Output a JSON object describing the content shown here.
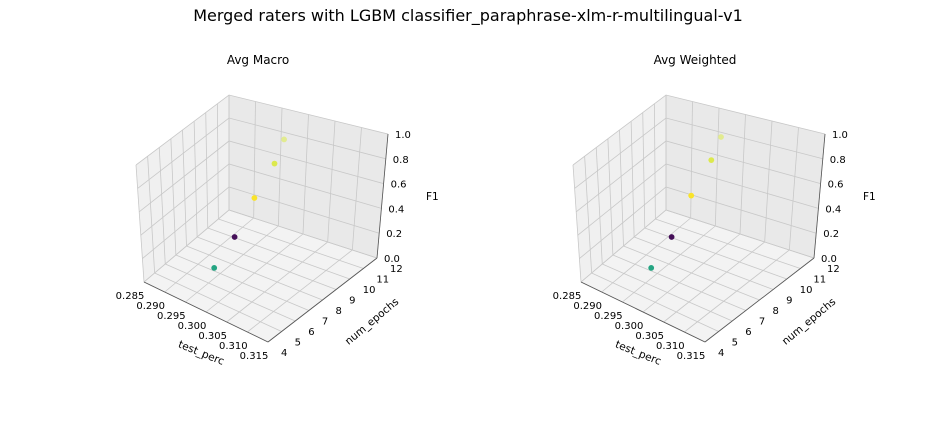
{
  "figure": {
    "title": "Merged raters with LGBM classifier_paraphrase-xlm-r-multilingual-v1"
  },
  "chart_data": [
    {
      "type": "scatter",
      "title": "Avg Macro",
      "xlabel": "test_perc",
      "ylabel": "num_epochs",
      "zlabel": "F1",
      "xlim": [
        0.285,
        0.315
      ],
      "ylim": [
        4,
        12
      ],
      "zlim": [
        0,
        1
      ],
      "xticks": [
        "0.285",
        "0.290",
        "0.295",
        "0.300",
        "0.305",
        "0.310",
        "0.315"
      ],
      "yticks": [
        "4",
        "5",
        "6",
        "7",
        "8",
        "9",
        "10",
        "11",
        "12"
      ],
      "zticks": [
        "0.0",
        "0.2",
        "0.4",
        "0.6",
        "0.8",
        "1.0"
      ],
      "points": [
        {
          "x": 0.3,
          "y": 5,
          "z": 0.3,
          "color": "#25a583"
        },
        {
          "x": 0.3,
          "y": 7,
          "z": 0.41,
          "color": "#450f58"
        },
        {
          "x": 0.3,
          "y": 9,
          "z": 0.59,
          "color": "#f9e32a"
        },
        {
          "x": 0.3,
          "y": 11,
          "z": 0.73,
          "color": "#dce94d"
        },
        {
          "x": 0.3,
          "y": 12,
          "z": 0.86,
          "color": "#e2eb90"
        }
      ]
    },
    {
      "type": "scatter",
      "title": "Avg Weighted",
      "xlabel": "test_perc",
      "ylabel": "num_epochs",
      "zlabel": "F1",
      "xlim": [
        0.285,
        0.315
      ],
      "ylim": [
        4,
        12
      ],
      "zlim": [
        0,
        1
      ],
      "xticks": [
        "0.285",
        "0.290",
        "0.295",
        "0.300",
        "0.305",
        "0.310",
        "0.315"
      ],
      "yticks": [
        "4",
        "5",
        "6",
        "7",
        "8",
        "9",
        "10",
        "11",
        "12"
      ],
      "zticks": [
        "0.0",
        "0.2",
        "0.4",
        "0.6",
        "0.8",
        "1.0"
      ],
      "points": [
        {
          "x": 0.3,
          "y": 5,
          "z": 0.3,
          "color": "#25a583"
        },
        {
          "x": 0.3,
          "y": 7,
          "z": 0.41,
          "color": "#450f58"
        },
        {
          "x": 0.3,
          "y": 9,
          "z": 0.61,
          "color": "#f9e32a"
        },
        {
          "x": 0.3,
          "y": 11,
          "z": 0.76,
          "color": "#dce94d"
        },
        {
          "x": 0.3,
          "y": 12,
          "z": 0.88,
          "color": "#e2eb90"
        }
      ]
    }
  ]
}
